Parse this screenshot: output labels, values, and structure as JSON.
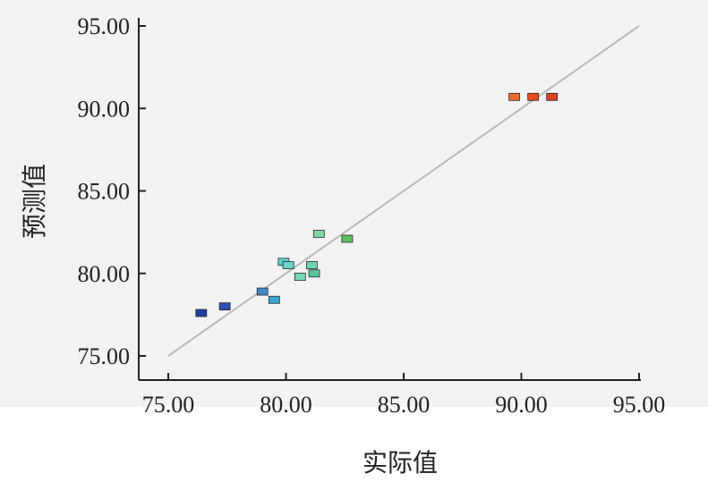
{
  "chart_data": {
    "type": "scatter",
    "title": "",
    "xlabel": "实际值",
    "ylabel": "预测值",
    "xlim": [
      75,
      95
    ],
    "ylim": [
      75,
      95
    ],
    "x_ticks": [
      "75.00",
      "80.00",
      "85.00",
      "90.00",
      "95.00"
    ],
    "y_ticks": [
      "75.00",
      "80.00",
      "85.00",
      "90.00",
      "95.00"
    ],
    "reference_line": {
      "from": [
        75,
        75
      ],
      "to": [
        95,
        95
      ],
      "color": "#b8b8b8"
    },
    "grid": false,
    "legend": "none",
    "points": [
      {
        "x": 76.4,
        "y": 77.6,
        "color": "#1f3fa0"
      },
      {
        "x": 77.4,
        "y": 78.0,
        "color": "#2a4fb5"
      },
      {
        "x": 79.0,
        "y": 78.9,
        "color": "#3a88c8"
      },
      {
        "x": 79.5,
        "y": 78.4,
        "color": "#3aa7d4"
      },
      {
        "x": 79.9,
        "y": 80.7,
        "color": "#5ed0d3"
      },
      {
        "x": 80.1,
        "y": 80.5,
        "color": "#6ad6cf"
      },
      {
        "x": 80.6,
        "y": 79.8,
        "color": "#74d9b8"
      },
      {
        "x": 81.1,
        "y": 80.5,
        "color": "#6ed6b2"
      },
      {
        "x": 81.2,
        "y": 80.0,
        "color": "#56c89a"
      },
      {
        "x": 81.4,
        "y": 82.4,
        "color": "#7ed6a0"
      },
      {
        "x": 82.6,
        "y": 82.1,
        "color": "#5cc25c"
      },
      {
        "x": 89.7,
        "y": 90.7,
        "color": "#ef6a2a"
      },
      {
        "x": 90.5,
        "y": 90.7,
        "color": "#e24a1e"
      },
      {
        "x": 91.3,
        "y": 90.7,
        "color": "#df3f22"
      }
    ]
  }
}
